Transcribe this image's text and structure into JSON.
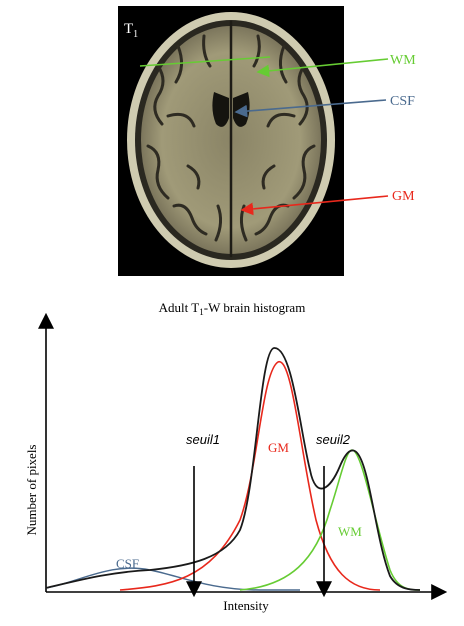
{
  "mri": {
    "sequence_label": "T",
    "sequence_sub": "1",
    "labels": {
      "wm": "WM",
      "csf": "CSF",
      "gm": "GM"
    }
  },
  "histogram": {
    "title_pre": "Adult T",
    "title_sub": "1",
    "title_post": "-W brain histogram",
    "ylabel": "Number of pixels",
    "xlabel": "Intensity",
    "threshold1": "seuil1",
    "threshold2": "seuil2",
    "curve_labels": {
      "csf": "CSF",
      "gm": "GM",
      "wm": "WM"
    }
  },
  "colors": {
    "wm": "#66cc33",
    "csf": "#4a6a8e",
    "gm": "#e8281c",
    "total": "#1a1a1a",
    "mri_background": "#000000"
  }
}
